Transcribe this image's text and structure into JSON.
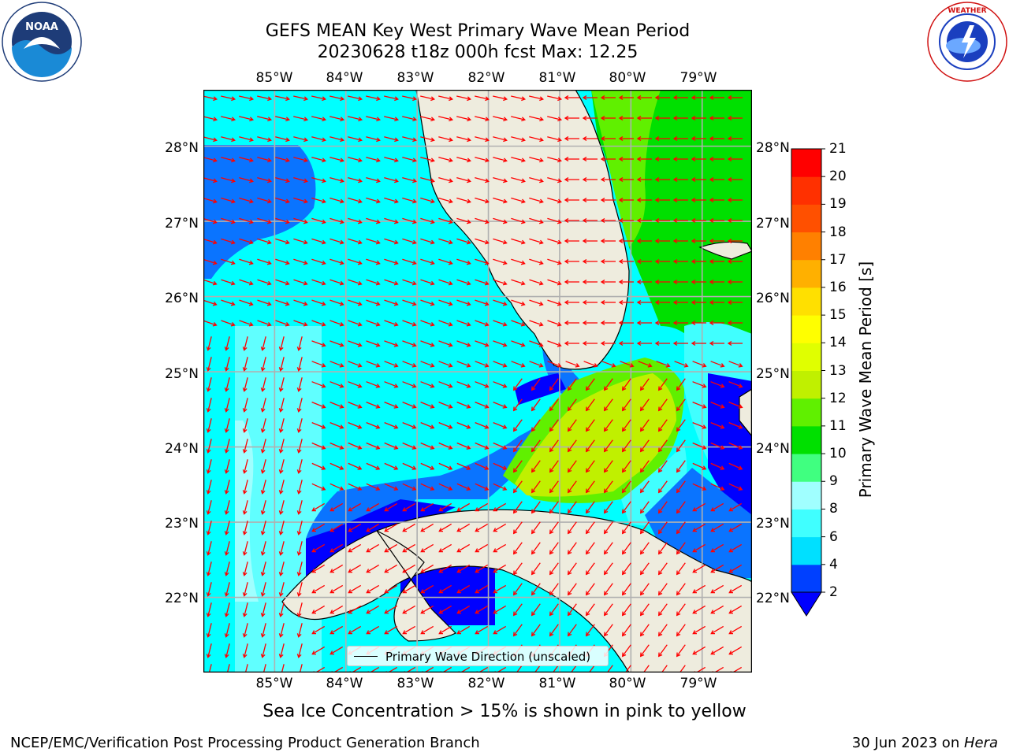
{
  "title": {
    "line1": "GEFS MEAN Key West Primary Wave Mean Period",
    "line2": "20230628 t18z 000h fcst   Max: 12.25"
  },
  "logos": {
    "left": {
      "name": "NOAA",
      "ring_text": "NATIONAL OCEANIC AND ATMOSPHERIC ADMINISTRATION",
      "bottom_text": "U.S. DEPARTMENT OF COMMERCE"
    },
    "right": {
      "name": "NATIONAL WEATHER SERVICE"
    }
  },
  "map": {
    "lon_labels": [
      "85°W",
      "84°W",
      "83°W",
      "82°W",
      "81°W",
      "80°W",
      "79°W"
    ],
    "lat_labels": [
      "28°N",
      "27°N",
      "26°N",
      "25°N",
      "24°N",
      "23°N",
      "22°N"
    ],
    "lon_values": [
      -85,
      -84,
      -83,
      -82,
      -81,
      -80,
      -79
    ],
    "lat_values": [
      28,
      27,
      26,
      25,
      24,
      23,
      22
    ],
    "extent": {
      "lon_min": -86.0,
      "lon_max": -78.3,
      "lat_min": 21.0,
      "lat_max": 28.75
    },
    "land_color": "#eeecde",
    "arrow_color": "#ff0000",
    "gridline_color": "#b0b0b0"
  },
  "legend": {
    "label": "Primary Wave Direction (unscaled)"
  },
  "colorbar": {
    "label": "Primary Wave Mean Period [s]",
    "ticks": [
      "2",
      "4",
      "6",
      "8",
      "9",
      "10",
      "11",
      "12",
      "13",
      "14",
      "15",
      "16",
      "17",
      "18",
      "19",
      "20",
      "21"
    ],
    "colors": [
      "#0040ff",
      "#00e0ff",
      "#40ffff",
      "#a0ffff",
      "#40ff80",
      "#00e000",
      "#60f000",
      "#c0f000",
      "#e0ff00",
      "#ffff00",
      "#ffe000",
      "#ffb000",
      "#ff8000",
      "#ff5000",
      "#ff3000",
      "#ff0000"
    ],
    "under_color": "#0000ff"
  },
  "note": "Sea Ice Concentration > 15% is shown in pink to yellow",
  "footer": {
    "left": "NCEP/EMC/Verification Post Processing Product Generation Branch",
    "right_date": "30 Jun 2023 on ",
    "right_machine": "Hera"
  }
}
